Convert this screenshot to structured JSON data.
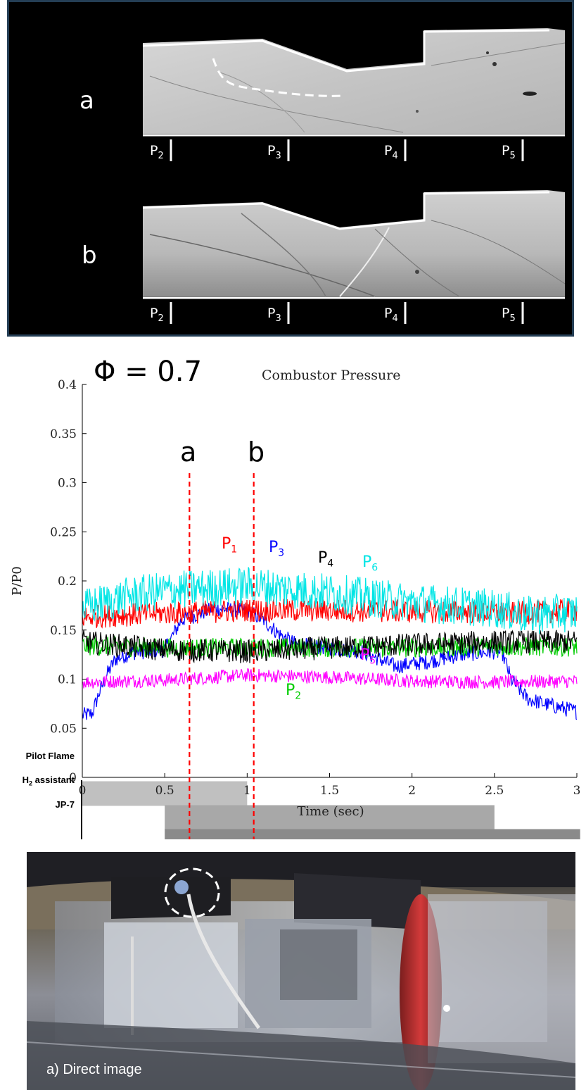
{
  "schlieren": {
    "frames": [
      {
        "letter": "a",
        "sensors": [
          {
            "main": "P",
            "sub": "2"
          },
          {
            "main": "P",
            "sub": "3"
          },
          {
            "main": "P",
            "sub": "4"
          },
          {
            "main": "P",
            "sub": "5"
          }
        ]
      },
      {
        "letter": "b",
        "sensors": [
          {
            "main": "P",
            "sub": "2"
          },
          {
            "main": "P",
            "sub": "3"
          },
          {
            "main": "P",
            "sub": "4"
          },
          {
            "main": "P",
            "sub": "5"
          }
        ]
      }
    ]
  },
  "chart_data": {
    "type": "line",
    "annotation_phi": "Φ = 0.7",
    "title": "Combustor Pressure",
    "xlabel": "Time (sec)",
    "ylabel": "P/P0",
    "xlim": [
      0,
      3
    ],
    "ylim": [
      0,
      0.4
    ],
    "x_ticks": [
      "0",
      "0.5",
      "1",
      "1.5",
      "2",
      "2.5",
      "3"
    ],
    "y_ticks": [
      "0",
      "0.05",
      "0.1",
      "0.15",
      "0.2",
      "0.25",
      "0.3",
      "0.35",
      "0.4"
    ],
    "grid": false,
    "legend": "inline labels",
    "series": [
      {
        "name": "P",
        "sub": "1",
        "color": "#ff0000",
        "noise": 0.012,
        "x": [
          0,
          0.2,
          0.5,
          1.0,
          1.5,
          2.0,
          2.5,
          2.6,
          3.0
        ],
        "y": [
          0.163,
          0.165,
          0.167,
          0.17,
          0.17,
          0.169,
          0.168,
          0.167,
          0.17
        ]
      },
      {
        "name": "P",
        "sub": "2",
        "color": "#00cc00",
        "noise": 0.01,
        "x": [
          0,
          0.5,
          1.0,
          1.5,
          2.0,
          2.5,
          3.0
        ],
        "y": [
          0.134,
          0.132,
          0.132,
          0.132,
          0.132,
          0.133,
          0.133
        ]
      },
      {
        "name": "P",
        "sub": "3",
        "color": "#0000ff",
        "noise": 0.008,
        "x": [
          0,
          0.06,
          0.1,
          0.15,
          0.2,
          0.3,
          0.5,
          0.55,
          0.6,
          0.8,
          1.0,
          1.1,
          1.2,
          1.3,
          1.5,
          1.7,
          1.9,
          2.1,
          2.3,
          2.5,
          2.55,
          2.6,
          2.7,
          2.8,
          3.0
        ],
        "y": [
          0.063,
          0.065,
          0.085,
          0.105,
          0.12,
          0.127,
          0.13,
          0.145,
          0.16,
          0.172,
          0.17,
          0.16,
          0.145,
          0.135,
          0.132,
          0.128,
          0.113,
          0.118,
          0.125,
          0.128,
          0.126,
          0.1,
          0.08,
          0.075,
          0.067
        ]
      },
      {
        "name": "P",
        "sub": "4",
        "color": "#000000",
        "noise": 0.012,
        "x": [
          0,
          0.5,
          1.0,
          1.5,
          2.0,
          2.5,
          3.0
        ],
        "y": [
          0.138,
          0.13,
          0.128,
          0.132,
          0.135,
          0.138,
          0.138
        ]
      },
      {
        "name": "P",
        "sub": "5",
        "color": "#ff00ff",
        "noise": 0.007,
        "x": [
          0,
          0.5,
          1.0,
          1.5,
          2.0,
          2.5,
          3.0
        ],
        "y": [
          0.097,
          0.099,
          0.104,
          0.102,
          0.098,
          0.097,
          0.098
        ]
      },
      {
        "name": "P",
        "sub": "6",
        "color": "#00e5e5",
        "noise": 0.02,
        "x": [
          0,
          0.3,
          0.5,
          1.0,
          1.5,
          2.0,
          2.5,
          2.7,
          3.0
        ],
        "y": [
          0.172,
          0.185,
          0.19,
          0.195,
          0.188,
          0.178,
          0.172,
          0.165,
          0.168
        ]
      }
    ],
    "events": [
      {
        "label": "a",
        "x": 0.65,
        "color": "#ff0000"
      },
      {
        "label": "b",
        "x": 1.04,
        "color": "#ff0000"
      }
    ],
    "timeline": [
      {
        "label": "Pilot Flame",
        "label_sub": "",
        "label_rest": "",
        "start": 0,
        "end": 1.0,
        "color": "#c0c0c0"
      },
      {
        "label": "H",
        "label_sub": "2",
        "label_rest": " assistant",
        "start": 0.5,
        "end": 2.5,
        "color": "#a8a8a8"
      },
      {
        "label": "JP-7",
        "label_sub": "",
        "label_rest": "",
        "start": 0.5,
        "end": 3.02,
        "color": "#8a8a8a"
      }
    ]
  },
  "photo": {
    "caption": "a) Direct image"
  }
}
